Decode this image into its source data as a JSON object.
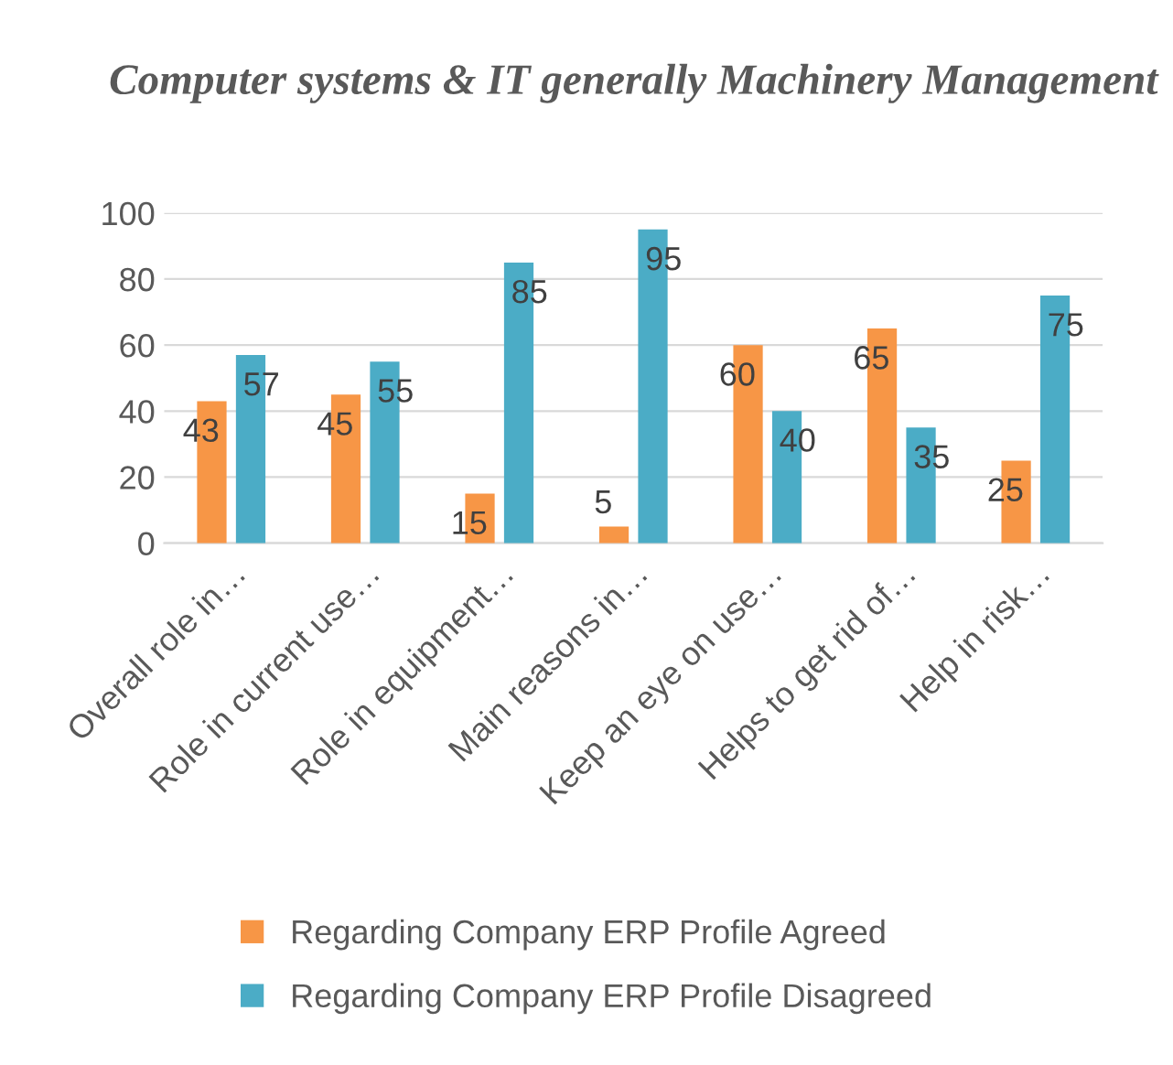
{
  "chart_data": {
    "type": "bar",
    "title": "Computer systems & IT generally Machinery Management",
    "categories": [
      "Overall role in…",
      "Role in current use…",
      "Role in equipment…",
      "Main reasons in…",
      "Keep an eye on use…",
      "Helps to get rid of…",
      "Help in risk…"
    ],
    "series": [
      {
        "name": "Regarding Company ERP Profile Agreed",
        "color": "#f79646",
        "values": [
          43,
          45,
          15,
          5,
          60,
          65,
          25
        ]
      },
      {
        "name": "Regarding Company ERP Profile Disagreed",
        "color": "#4bacc6",
        "values": [
          57,
          55,
          85,
          95,
          40,
          35,
          75
        ]
      }
    ],
    "ylim": [
      0,
      100
    ],
    "yticks": [
      0,
      20,
      40,
      60,
      80,
      100
    ],
    "grid": "y",
    "legend": "bottom",
    "data_labels": true
  }
}
